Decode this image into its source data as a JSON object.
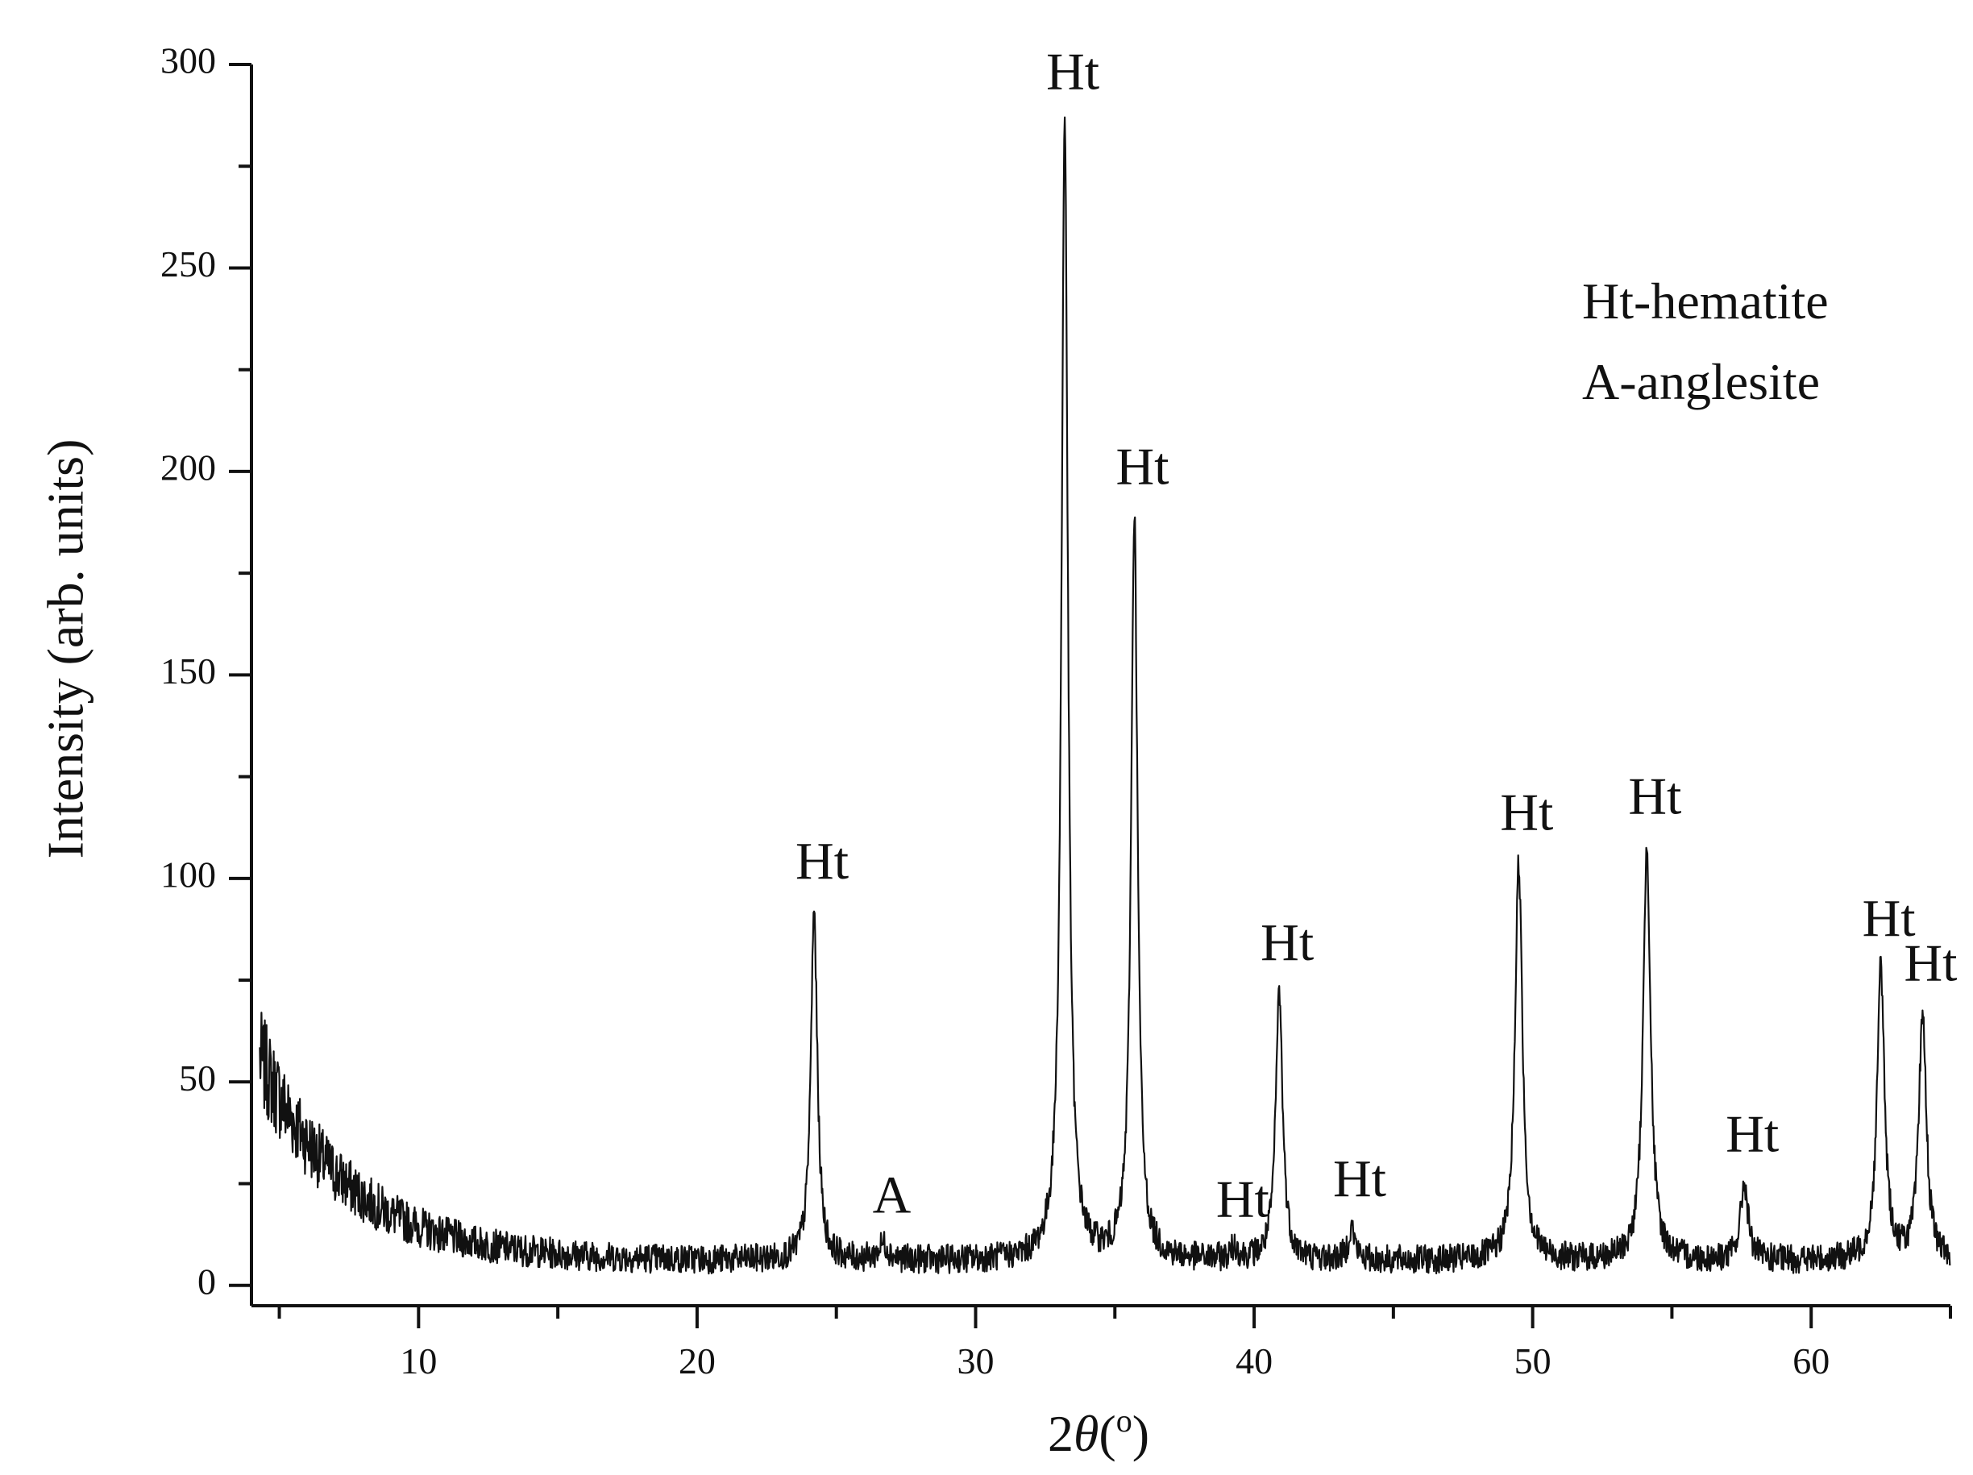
{
  "chart_data": {
    "type": "line",
    "title": "",
    "xlabel": {
      "prefix": "2",
      "symbol": "θ",
      "unit_open": "(",
      "unit": "o",
      "unit_close": ")"
    },
    "ylabel": "Intensity (arb. units)",
    "xlim": [
      4,
      65
    ],
    "ylim": [
      -5,
      300
    ],
    "x_ticks": [
      10,
      20,
      30,
      40,
      50,
      60
    ],
    "x_tick_labels": [
      "10",
      "20",
      "30",
      "40",
      "50",
      "60"
    ],
    "y_ticks": [
      0,
      50,
      100,
      150,
      200,
      250,
      300
    ],
    "y_tick_labels": [
      "0",
      "50",
      "100",
      "150",
      "200",
      "250",
      "300"
    ],
    "grid": false,
    "line_color": "#111111",
    "peaks": [
      {
        "x": 24.2,
        "y": 92,
        "width": 0.14,
        "label": "Ht"
      },
      {
        "x": 26.7,
        "y": 10,
        "width": 0.2,
        "label": "A"
      },
      {
        "x": 33.2,
        "y": 286,
        "width": 0.14,
        "label": "Ht"
      },
      {
        "x": 35.7,
        "y": 189,
        "width": 0.14,
        "label": "Ht"
      },
      {
        "x": 39.3,
        "y": 9,
        "width": 0.14,
        "label": "Ht"
      },
      {
        "x": 40.9,
        "y": 72,
        "width": 0.15,
        "label": "Ht"
      },
      {
        "x": 43.5,
        "y": 14,
        "width": 0.14,
        "label": "Ht"
      },
      {
        "x": 49.5,
        "y": 104,
        "width": 0.16,
        "label": "Ht"
      },
      {
        "x": 54.1,
        "y": 108,
        "width": 0.16,
        "label": "Ht"
      },
      {
        "x": 57.6,
        "y": 25,
        "width": 0.16,
        "label": "Ht"
      },
      {
        "x": 62.5,
        "y": 78,
        "width": 0.16,
        "label": "Ht"
      },
      {
        "x": 64.0,
        "y": 67,
        "width": 0.16,
        "label": "Ht"
      }
    ],
    "legend": {
      "placement": "top-right",
      "entries": [
        "Ht-hematite",
        "A-anglesite"
      ]
    }
  }
}
